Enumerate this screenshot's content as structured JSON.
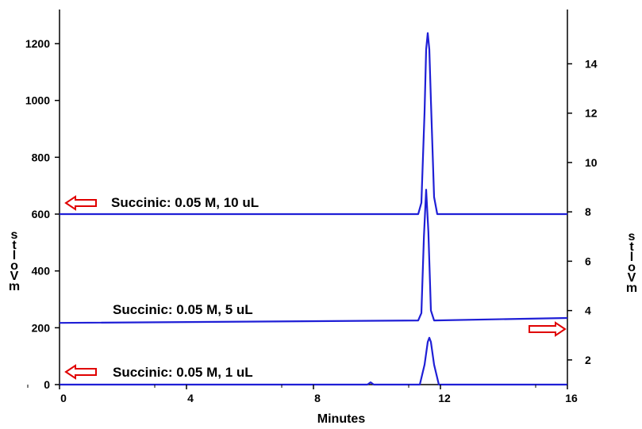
{
  "chart_data": {
    "type": "line",
    "xlabel": "Minutes",
    "ylabel_left": "mVolts",
    "ylabel_right": "mVolts",
    "xlim": [
      0,
      16
    ],
    "ylim_left": [
      0,
      1320
    ],
    "ylim_right": [
      1,
      16.2
    ],
    "x_ticks": [
      0,
      4,
      8,
      12,
      16
    ],
    "y_left_ticks": [
      0,
      200,
      400,
      600,
      800,
      1000,
      1200
    ],
    "y_right_ticks": [
      2,
      4,
      6,
      8,
      10,
      12,
      14
    ],
    "grid": false,
    "series": [
      {
        "name": "Succinic: 0.05 M, 10 uL",
        "axis": "left",
        "baseline": 600,
        "peak_x": 11.6,
        "peak_y": 1237,
        "x": [
          0,
          11.3,
          11.4,
          11.5,
          11.55,
          11.6,
          11.65,
          11.7,
          11.8,
          11.9,
          16
        ],
        "y": [
          600,
          600,
          640,
          960,
          1180,
          1237,
          1180,
          1000,
          660,
          600,
          600
        ],
        "color": "#1f1fd6",
        "arrow": "left"
      },
      {
        "name": "Succinic: 0.05 M, 5 uL",
        "axis": "right",
        "baseline": 3.6,
        "peak_x": 11.55,
        "peak_y": 8.9,
        "x": [
          0,
          11.3,
          11.4,
          11.48,
          11.55,
          11.62,
          11.7,
          11.8,
          16
        ],
        "y": [
          3.5,
          3.6,
          3.9,
          7.0,
          8.9,
          7.2,
          4.0,
          3.6,
          3.7
        ],
        "color": "#1f1fd6",
        "arrow": "right"
      },
      {
        "name": "Succinic: 0.05 M, 1 uL",
        "axis": "left",
        "baseline": 0,
        "peak_x": 11.65,
        "peak_y": 165,
        "x": [
          0,
          9.7,
          9.8,
          9.9,
          11.35,
          11.5,
          11.6,
          11.65,
          11.7,
          11.8,
          11.95,
          16
        ],
        "y": [
          0,
          0,
          8,
          0,
          0,
          70,
          150,
          165,
          150,
          70,
          0,
          0
        ],
        "color": "#1f1fd6",
        "arrow": "left"
      }
    ]
  }
}
